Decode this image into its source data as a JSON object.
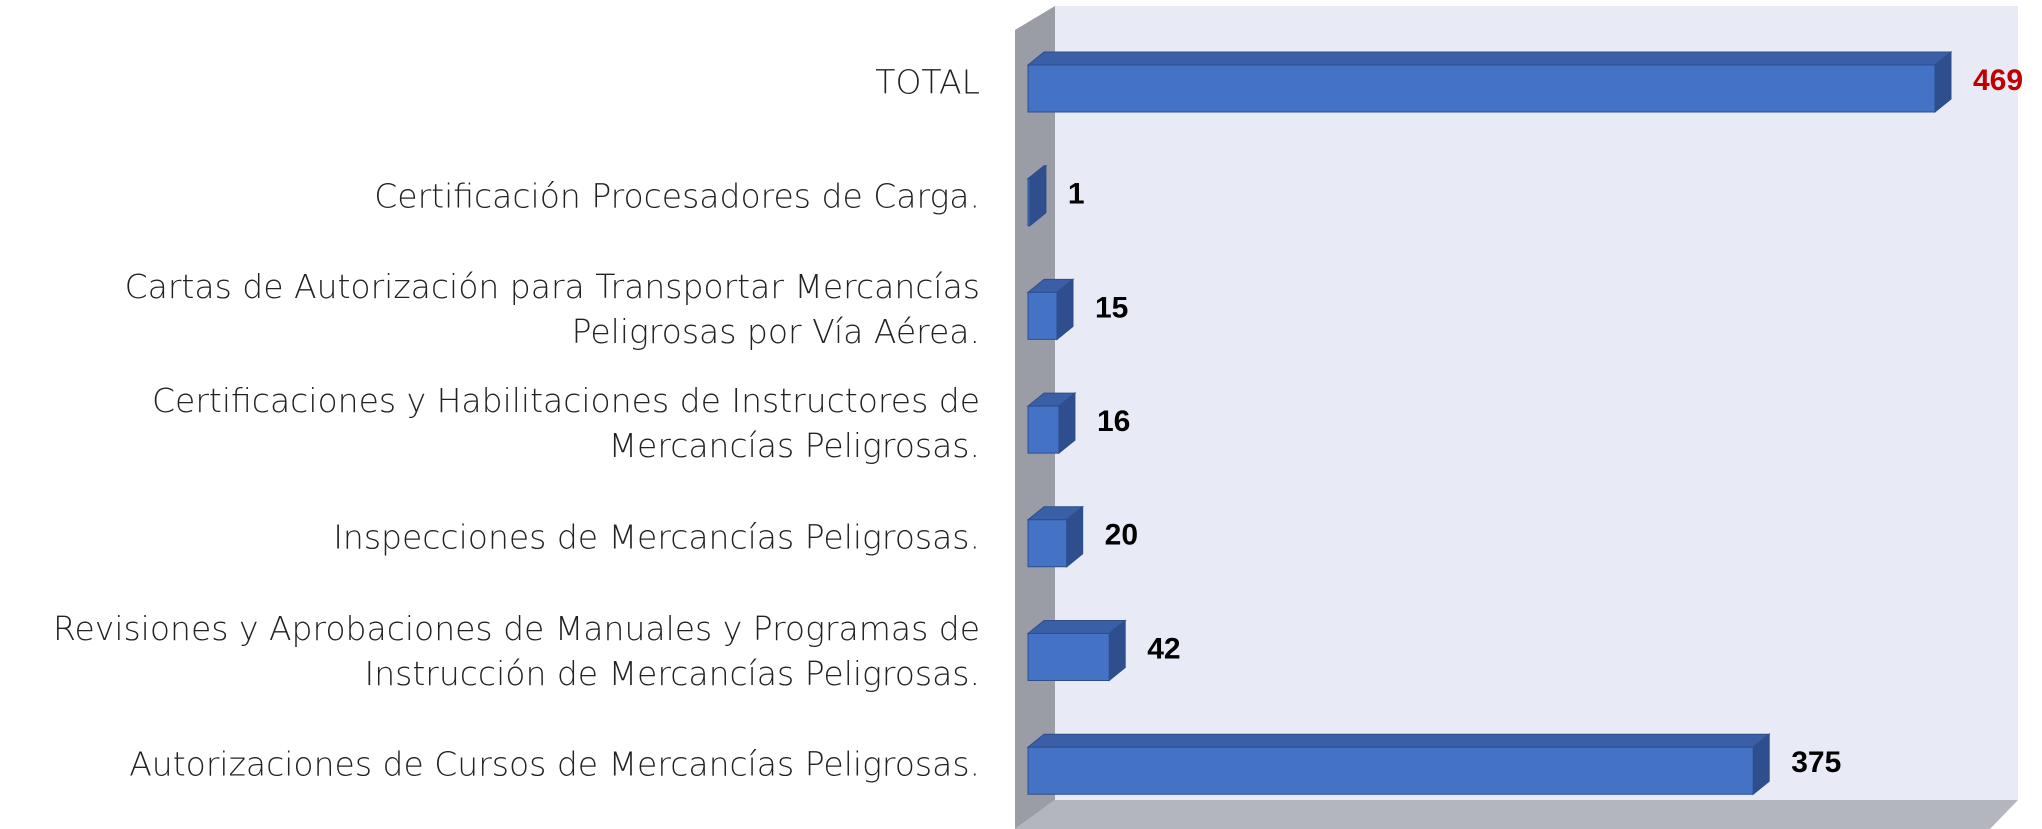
{
  "chart_data": {
    "type": "bar3d_horizontal",
    "categories": [
      "TOTAL",
      "Certificación Procesadores de Carga.",
      "Cartas de Autorización para Transportar Mercancías Peligrosas por Vía Aérea.",
      "Certificaciones y Habilitaciones de Instructores de Mercancías Peligrosas.",
      "Inspecciones de Mercancías Peligrosas.",
      "Revisiones y Aprobaciones de Manuales y Programas de Instrucción de Mercancías Peligrosas.",
      "Autorizaciones de Cursos de Mercancías Peligrosas."
    ],
    "values": [
      469,
      1,
      15,
      16,
      20,
      42,
      375
    ],
    "color": "#4472c4",
    "label_colors": [
      "#c00000",
      "#000000",
      "#000000",
      "#000000",
      "#000000",
      "#000000",
      "#000000"
    ]
  }
}
